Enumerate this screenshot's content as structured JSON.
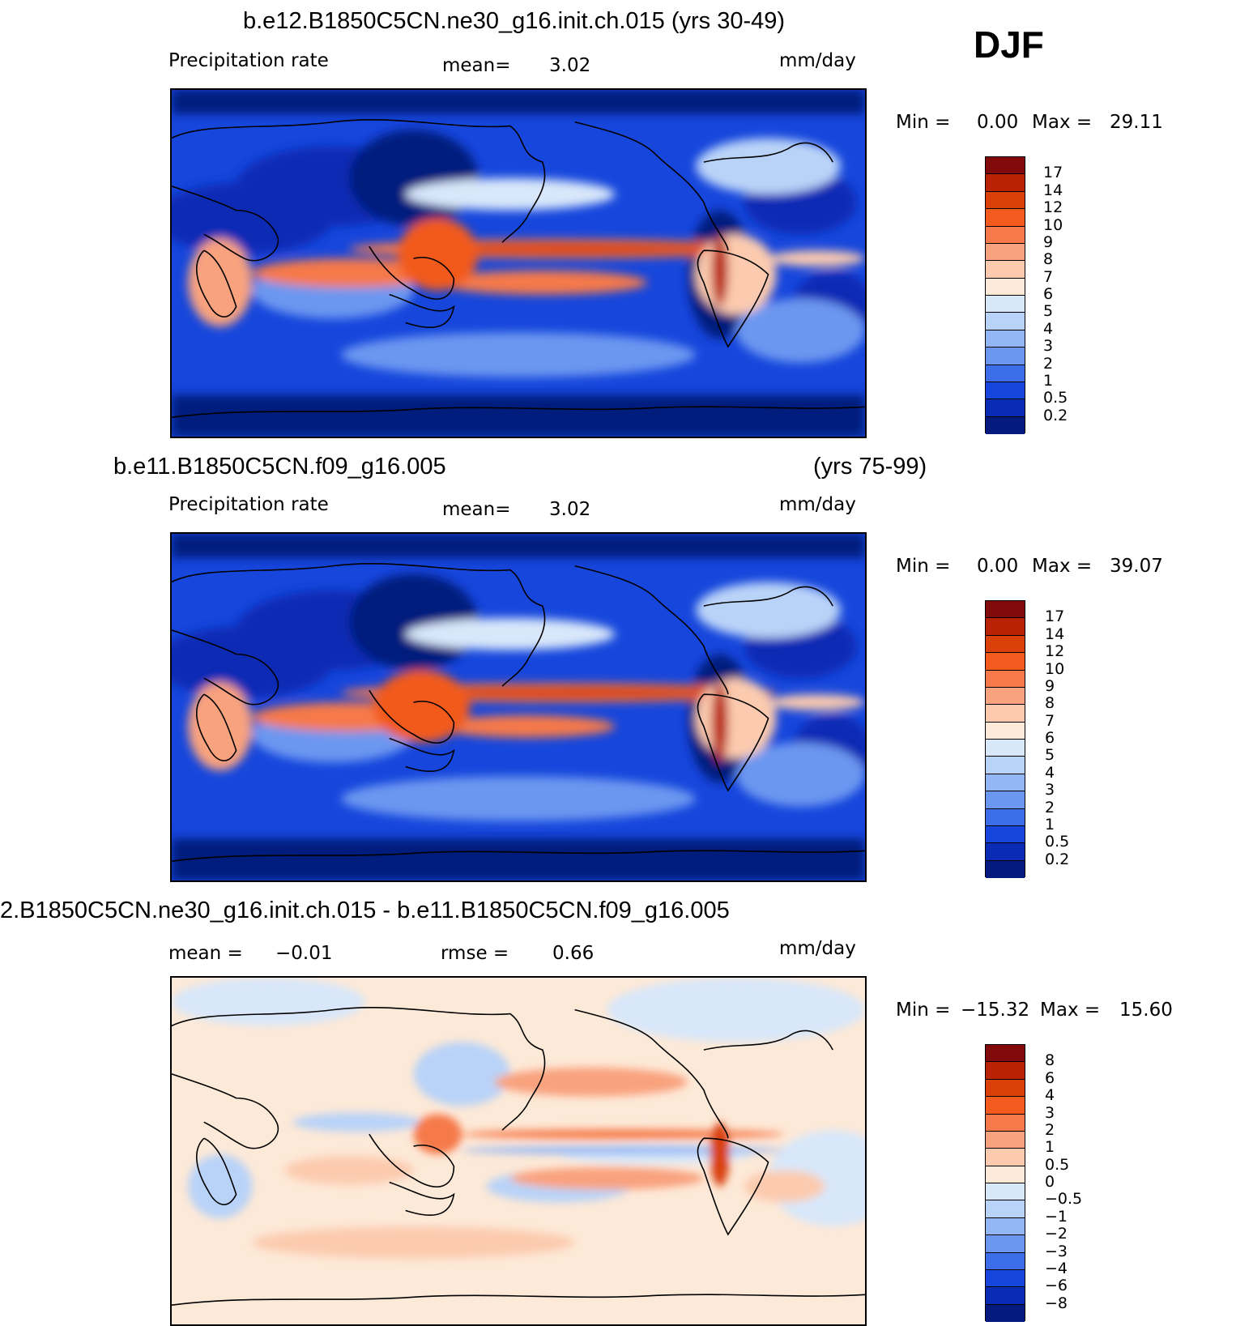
{
  "season": "DJF",
  "panels": [
    {
      "title_left": "b.e12.B1850C5CN.ne30_g16.init.ch.015 (yrs 30-49)",
      "title_right": "",
      "left_label": "Precipitation  rate",
      "mid_key": "mean=",
      "mid_value": "3.02",
      "units": "mm/day",
      "min_label": "Min  =",
      "min_value": "0.00",
      "max_label": "Max  =",
      "max_value": "29.11",
      "colorbar": {
        "labels": [
          "17",
          "14",
          "12",
          "10",
          "9",
          "8",
          "7",
          "6",
          "5",
          "4",
          "3",
          "2",
          "1",
          "0.5",
          "0.2"
        ],
        "colors": [
          "#830a0a",
          "#b92303",
          "#d9400a",
          "#f25a1e",
          "#f6794a",
          "#f9a27e",
          "#fccbaf",
          "#fde9d7",
          "#d8e7fa",
          "#b9d3f8",
          "#93b6f4",
          "#6c97f0",
          "#3b6ee8",
          "#1646dc",
          "#0a2bb5",
          "#041a7d"
        ]
      }
    },
    {
      "title_left": "b.e11.B1850C5CN.f09_g16.005",
      "title_right": "(yrs 75-99)",
      "left_label": "Precipitation  rate",
      "mid_key": "mean=",
      "mid_value": "3.02",
      "units": "mm/day",
      "min_label": "Min  =",
      "min_value": "0.00",
      "max_label": "Max  =",
      "max_value": "39.07",
      "colorbar": {
        "labels": [
          "17",
          "14",
          "12",
          "10",
          "9",
          "8",
          "7",
          "6",
          "5",
          "4",
          "3",
          "2",
          "1",
          "0.5",
          "0.2"
        ],
        "colors": [
          "#830a0a",
          "#b92303",
          "#d9400a",
          "#f25a1e",
          "#f6794a",
          "#f9a27e",
          "#fccbaf",
          "#fde9d7",
          "#d8e7fa",
          "#b9d3f8",
          "#93b6f4",
          "#6c97f0",
          "#3b6ee8",
          "#1646dc",
          "#0a2bb5",
          "#041a7d"
        ]
      }
    },
    {
      "title_left": "2.B1850C5CN.ne30_g16.init.ch.015 - b.e11.B1850C5CN.f09_g16.005",
      "title_right": "",
      "left_label": "mean  =",
      "left_value": "−0.01",
      "mid_key": "rmse  =",
      "mid_value": "0.66",
      "units": "mm/day",
      "min_label": "Min  =",
      "min_value": "−15.32",
      "max_label": "Max  =",
      "max_value": "15.60",
      "colorbar": {
        "labels": [
          "8",
          "6",
          "4",
          "3",
          "2",
          "1",
          "0.5",
          "0",
          "−0.5",
          "−1",
          "−2",
          "−3",
          "−4",
          "−6",
          "−8"
        ],
        "colors": [
          "#830a0a",
          "#b92303",
          "#d9400a",
          "#f25a1e",
          "#f6794a",
          "#f9a27e",
          "#fccbaf",
          "#fde9d7",
          "#d8e7fa",
          "#b9d3f8",
          "#93b6f4",
          "#6c97f0",
          "#3b6ee8",
          "#1646dc",
          "#0a2bb5",
          "#041a7d"
        ]
      }
    }
  ],
  "chart_data": [
    {
      "type": "heatmap",
      "title": "b.e12.B1850C5CN.ne30_g16.init.ch.015 (yrs 30-49)",
      "variable": "Precipitation  rate",
      "units": "mm/day",
      "mean": 3.02,
      "min": 0.0,
      "max": 29.11,
      "contour_levels": [
        0.2,
        0.5,
        1,
        2,
        3,
        4,
        5,
        6,
        7,
        8,
        9,
        10,
        12,
        14,
        17
      ]
    },
    {
      "type": "heatmap",
      "title": "b.e11.B1850C5CN.f09_g16.005 (yrs 75-99)",
      "variable": "Precipitation  rate",
      "units": "mm/day",
      "mean": 3.02,
      "min": 0.0,
      "max": 39.07,
      "contour_levels": [
        0.2,
        0.5,
        1,
        2,
        3,
        4,
        5,
        6,
        7,
        8,
        9,
        10,
        12,
        14,
        17
      ]
    },
    {
      "type": "heatmap",
      "title": "2.B1850C5CN.ne30_g16.init.ch.015 - b.e11.B1850C5CN.f09_g16.005",
      "units": "mm/day",
      "mean": -0.01,
      "rmse": 0.66,
      "min": -15.32,
      "max": 15.6,
      "contour_levels": [
        -8,
        -6,
        -4,
        -3,
        -2,
        -1,
        -0.5,
        0,
        0.5,
        1,
        2,
        3,
        4,
        6,
        8
      ]
    }
  ]
}
